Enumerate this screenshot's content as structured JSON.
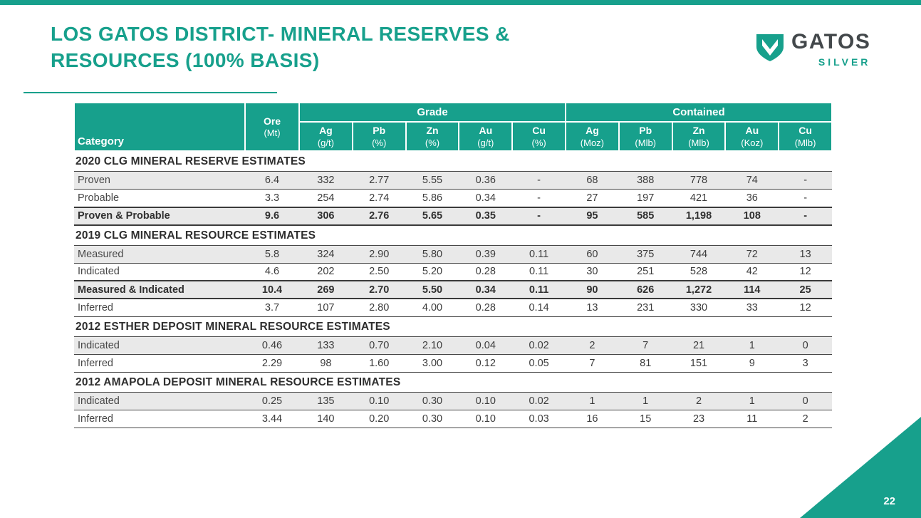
{
  "colors": {
    "teal": "#17A08C",
    "dark_text": "#3C3C3C",
    "row_shade": "#E9E9E9",
    "row_line": "#474747",
    "logo_dark": "#43484B"
  },
  "slide": {
    "page_number": "22"
  },
  "header": {
    "title_line1": "LOS GATOS DISTRICT- MINERAL RESERVES &",
    "title_line2": "RESOURCES (100% BASIS)",
    "logo": {
      "name": "GATOS",
      "tagline": "SILVER",
      "icon": "gatos-shield-icon"
    }
  },
  "table": {
    "group_headers": {
      "grade": "Grade",
      "contained": "Contained"
    },
    "columns": [
      {
        "label": "Category",
        "unit": ""
      },
      {
        "label": "Ore",
        "unit": "(Mt)"
      },
      {
        "label": "Ag",
        "unit": "(g/t)"
      },
      {
        "label": "Pb",
        "unit": "(%)"
      },
      {
        "label": "Zn",
        "unit": "(%)"
      },
      {
        "label": "Au",
        "unit": "(g/t)"
      },
      {
        "label": "Cu",
        "unit": "(%)"
      },
      {
        "label": "Ag",
        "unit": "(Moz)"
      },
      {
        "label": "Pb",
        "unit": "(Mlb)"
      },
      {
        "label": "Zn",
        "unit": "(Mlb)"
      },
      {
        "label": "Au",
        "unit": "(Koz)"
      },
      {
        "label": "Cu",
        "unit": "(Mlb)"
      }
    ],
    "sections": [
      {
        "title": "2020 CLG MINERAL RESERVE ESTIMATES",
        "rows": [
          {
            "category": "Proven",
            "bold": false,
            "values": [
              "6.4",
              "332",
              "2.77",
              "5.55",
              "0.36",
              "-",
              "68",
              "388",
              "778",
              "74",
              "-"
            ]
          },
          {
            "category": "Probable",
            "bold": false,
            "values": [
              "3.3",
              "254",
              "2.74",
              "5.86",
              "0.34",
              "-",
              "27",
              "197",
              "421",
              "36",
              "-"
            ]
          },
          {
            "category": "Proven & Probable",
            "bold": true,
            "values": [
              "9.6",
              "306",
              "2.76",
              "5.65",
              "0.35",
              "-",
              "95",
              "585",
              "1,198",
              "108",
              "-"
            ]
          }
        ]
      },
      {
        "title": "2019 CLG MINERAL RESOURCE ESTIMATES",
        "rows": [
          {
            "category": "Measured",
            "bold": false,
            "values": [
              "5.8",
              "324",
              "2.90",
              "5.80",
              "0.39",
              "0.11",
              "60",
              "375",
              "744",
              "72",
              "13"
            ]
          },
          {
            "category": "Indicated",
            "bold": false,
            "values": [
              "4.6",
              "202",
              "2.50",
              "5.20",
              "0.28",
              "0.11",
              "30",
              "251",
              "528",
              "42",
              "12"
            ]
          },
          {
            "category": "Measured & Indicated",
            "bold": true,
            "values": [
              "10.4",
              "269",
              "2.70",
              "5.50",
              "0.34",
              "0.11",
              "90",
              "626",
              "1,272",
              "114",
              "25"
            ]
          },
          {
            "category": "Inferred",
            "bold": false,
            "values": [
              "3.7",
              "107",
              "2.80",
              "4.00",
              "0.28",
              "0.14",
              "13",
              "231",
              "330",
              "33",
              "12"
            ]
          }
        ]
      },
      {
        "title": "2012 ESTHER DEPOSIT MINERAL RESOURCE ESTIMATES",
        "rows": [
          {
            "category": "Indicated",
            "bold": false,
            "values": [
              "0.46",
              "133",
              "0.70",
              "2.10",
              "0.04",
              "0.02",
              "2",
              "7",
              "21",
              "1",
              "0"
            ]
          },
          {
            "category": "Inferred",
            "bold": false,
            "values": [
              "2.29",
              "98",
              "1.60",
              "3.00",
              "0.12",
              "0.05",
              "7",
              "81",
              "151",
              "9",
              "3"
            ]
          }
        ]
      },
      {
        "title": "2012 AMAPOLA DEPOSIT MINERAL RESOURCE ESTIMATES",
        "rows": [
          {
            "category": "Indicated",
            "bold": false,
            "values": [
              "0.25",
              "135",
              "0.10",
              "0.30",
              "0.10",
              "0.02",
              "1",
              "1",
              "2",
              "1",
              "0"
            ]
          },
          {
            "category": "Inferred",
            "bold": false,
            "values": [
              "3.44",
              "140",
              "0.20",
              "0.30",
              "0.10",
              "0.03",
              "16",
              "15",
              "23",
              "11",
              "2"
            ]
          }
        ]
      }
    ]
  }
}
